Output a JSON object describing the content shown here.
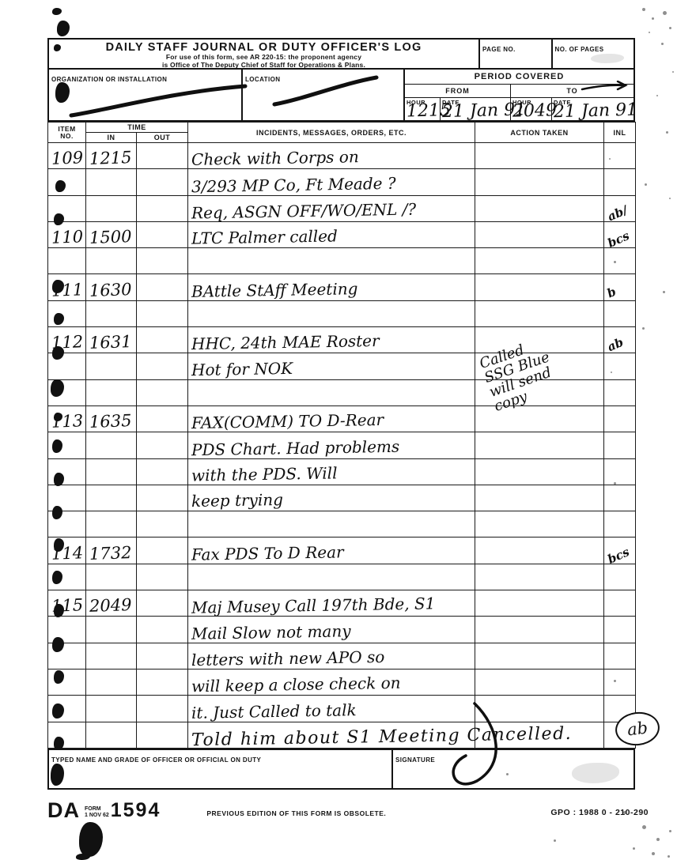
{
  "form": {
    "title": "DAILY STAFF JOURNAL OR DUTY OFFICER'S LOG",
    "subtitle_line1": "For use of this form, see AR 220-15: the proponent agency",
    "subtitle_line2": "is Office of The Deputy Chief of Staff for Operations & Plans.",
    "page_no_label": "PAGE NO.",
    "no_of_pages_label": "NO. OF PAGES",
    "organization_label": "ORGANIZATION OR INSTALLATION",
    "location_label": "LOCATION",
    "period_covered_label": "PERIOD COVERED",
    "from_label": "FROM",
    "to_label": "TO",
    "hour_label": "HOUR",
    "date_label": "DATE",
    "period": {
      "from_hour": "1215",
      "from_date": "21 Jan 91",
      "to_hour": "2049",
      "to_date": "21 Jan 91"
    }
  },
  "table": {
    "headers": {
      "item_line1": "ITEM",
      "item_line2": "NO.",
      "time": "TIME",
      "in": "IN",
      "out": "OUT",
      "incidents": "INCIDENTS, MESSAGES, ORDERS, ETC.",
      "action": "ACTION TAKEN",
      "inl": "INL"
    },
    "rows": [
      {
        "item": "109",
        "in": "1215",
        "out": "",
        "incident": "Check with Corps on",
        "action": "",
        "inl": ""
      },
      {
        "item": "",
        "in": "",
        "out": "",
        "incident": "3/293 MP Co, Ft Meade ?",
        "action": "",
        "inl": ""
      },
      {
        "item": "",
        "in": "",
        "out": "",
        "incident": "Req, ASGN OFF/WO/ENL /?",
        "action": "",
        "inl": "ab/"
      },
      {
        "item": "110",
        "in": "1500",
        "out": "",
        "incident": "LTC Palmer called",
        "action": "",
        "inl": "bcs"
      },
      {
        "item": "",
        "in": "",
        "out": "",
        "incident": "",
        "action": "",
        "inl": ""
      },
      {
        "item": "111",
        "in": "1630",
        "out": "",
        "incident": "BAttle StAff Meeting",
        "action": "",
        "inl": "b"
      },
      {
        "item": "",
        "in": "",
        "out": "",
        "incident": "",
        "action": "",
        "inl": ""
      },
      {
        "item": "112",
        "in": "1631",
        "out": "",
        "incident": "HHC, 24th MAE Roster",
        "action": "",
        "inl": "ab"
      },
      {
        "item": "",
        "in": "",
        "out": "",
        "incident": "Hot for NOK",
        "action": "",
        "inl": ""
      },
      {
        "item": "",
        "in": "",
        "out": "",
        "incident": "",
        "action": "",
        "inl": ""
      },
      {
        "item": "113",
        "in": "1635",
        "out": "",
        "incident": "FAX(COMM) TO D-Rear",
        "action": "",
        "inl": ""
      },
      {
        "item": "",
        "in": "",
        "out": "",
        "incident": "PDS Chart. Had problems",
        "action": "",
        "inl": ""
      },
      {
        "item": "",
        "in": "",
        "out": "",
        "incident": "with the PDS. Will",
        "action": "",
        "inl": ""
      },
      {
        "item": "",
        "in": "",
        "out": "",
        "incident": "keep trying",
        "action": "",
        "inl": ""
      },
      {
        "item": "",
        "in": "",
        "out": "",
        "incident": "",
        "action": "",
        "inl": ""
      },
      {
        "item": "114",
        "in": "1732",
        "out": "",
        "incident": "Fax PDS To D Rear",
        "action": "",
        "inl": "bcs"
      },
      {
        "item": "",
        "in": "",
        "out": "",
        "incident": "",
        "action": "",
        "inl": ""
      },
      {
        "item": "115",
        "in": "2049",
        "out": "",
        "incident": "Maj Musey Call 197th Bde, S1",
        "action": "",
        "inl": ""
      },
      {
        "item": "",
        "in": "",
        "out": "",
        "incident": "Mail Slow not many",
        "action": "",
        "inl": ""
      },
      {
        "item": "",
        "in": "",
        "out": "",
        "incident": "letters with new APO so",
        "action": "",
        "inl": ""
      },
      {
        "item": "",
        "in": "",
        "out": "",
        "incident": "will keep a close check on",
        "action": "",
        "inl": ""
      },
      {
        "item": "",
        "in": "",
        "out": "",
        "incident": "it. Just Called to talk",
        "action": "",
        "inl": ""
      },
      {
        "item": "",
        "in": "",
        "out": "",
        "incident": "Told him about S1 Meeting Cancelled.",
        "action": "",
        "inl": ""
      }
    ]
  },
  "overlays": {
    "action_note_112": "Called\nSSG Blue\nwill send\ncopy",
    "circled_initials": "ab"
  },
  "footer": {
    "typed_name_label": "TYPED NAME AND GRADE OF OFFICER OR OFFICIAL ON DUTY",
    "signature_label": "SIGNATURE",
    "da": "DA",
    "form_word": "FORM",
    "form_date": "1 NOV 62",
    "form_number": "1594",
    "obsolete": "PREVIOUS EDITION OF THIS FORM IS OBSOLETE.",
    "gpo": "GPO : 1988 0 - 210-290"
  }
}
